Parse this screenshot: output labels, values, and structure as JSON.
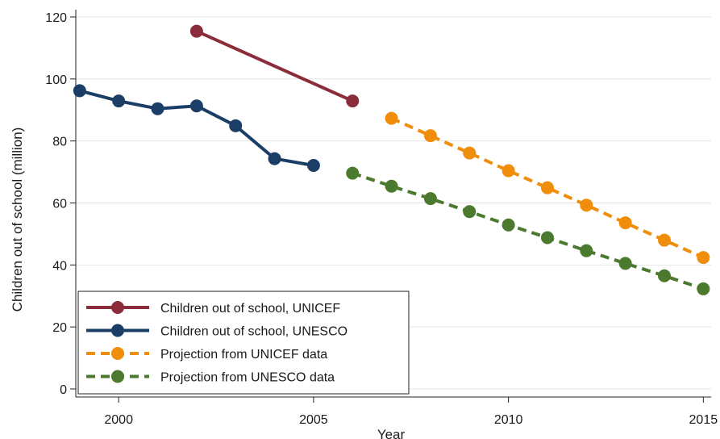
{
  "chart_data": {
    "type": "line",
    "title": "",
    "xlabel": "Year",
    "ylabel": "Children out of school (million)",
    "xlim": [
      1998.9,
      2015.2
    ],
    "ylim": [
      0,
      120
    ],
    "xticks": [
      2000,
      2005,
      2010,
      2015
    ],
    "yticks": [
      0,
      20,
      40,
      60,
      80,
      100,
      120
    ],
    "grid": "horizontal",
    "legend_position": "bottom-left",
    "series": [
      {
        "name": "Children out of school, UNICEF",
        "style": "solid",
        "color": "#8b2c3a",
        "x": [
          2002,
          2006
        ],
        "values": [
          115.4,
          92.9
        ]
      },
      {
        "name": "Children out of school, UNESCO",
        "style": "solid",
        "color": "#1b3e66",
        "x": [
          1999,
          2000,
          2001,
          2002,
          2003,
          2004,
          2005
        ],
        "values": [
          96.2,
          92.9,
          90.4,
          91.3,
          84.9,
          74.3,
          72.1
        ]
      },
      {
        "name": "Projection from UNICEF data",
        "style": "dashed",
        "color": "#f08d0b",
        "x": [
          2007,
          2008,
          2009,
          2010,
          2011,
          2012,
          2013,
          2014,
          2015
        ],
        "values": [
          87.3,
          81.7,
          76.1,
          70.4,
          64.9,
          59.3,
          53.6,
          48.0,
          42.4
        ]
      },
      {
        "name": "Projection from UNESCO data",
        "style": "dashed",
        "color": "#4b7a2e",
        "x": [
          2006,
          2007,
          2008,
          2009,
          2010,
          2011,
          2012,
          2013,
          2014,
          2015
        ],
        "values": [
          69.6,
          65.4,
          61.4,
          57.2,
          52.9,
          48.8,
          44.6,
          40.5,
          36.5,
          32.3
        ]
      }
    ]
  }
}
